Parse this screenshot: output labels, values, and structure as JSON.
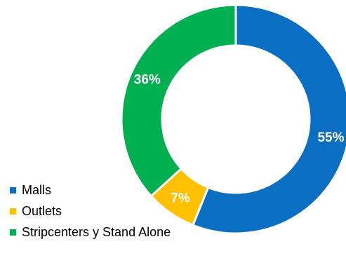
{
  "chart_data": {
    "type": "pie",
    "variant": "donut",
    "categories": [
      "Malls",
      "Outlets",
      "Stripcenters y Stand Alone"
    ],
    "values": [
      55,
      7,
      36
    ],
    "data_labels": [
      "55%",
      "7%",
      "36%"
    ],
    "colors": [
      "#0a6fc2",
      "#ffc000",
      "#00b050"
    ],
    "legend_position": "bottom-left",
    "start_angle_deg": 0,
    "direction": "clockwise"
  }
}
